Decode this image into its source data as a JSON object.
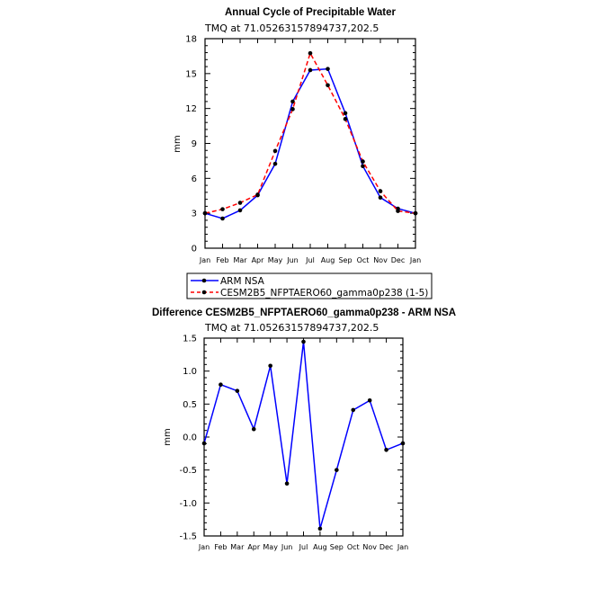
{
  "chart_data": [
    {
      "type": "line",
      "title": "Annual Cycle of Precipitable Water",
      "subtitle": "TMQ at 71.05263157894737,202.5",
      "xlabel": "",
      "ylabel": "mm",
      "ylim": [
        0,
        18
      ],
      "yticks": [
        "0",
        "3",
        "6",
        "9",
        "12",
        "15",
        "18"
      ],
      "ytick_values": [
        0,
        3,
        6,
        9,
        12,
        15,
        18
      ],
      "categories": [
        "Jan",
        "Feb",
        "Mar",
        "Apr",
        "May",
        "Jun",
        "Jul",
        "Aug",
        "Sep",
        "Oct",
        "Nov",
        "Dec",
        "Jan"
      ],
      "legend_placement": "bottom",
      "series": [
        {
          "name": "ARM NSA",
          "color": "#0000ff",
          "dash": false,
          "values": [
            3.0,
            2.55,
            3.25,
            4.55,
            7.25,
            12.6,
            15.3,
            15.4,
            11.6,
            7.05,
            4.35,
            3.4,
            3.0
          ]
        },
        {
          "name": "CESM2B5_NFPTAERO60_gamma0p238 (1-5)",
          "color": "#ff0000",
          "dash": true,
          "values": [
            3.0,
            3.35,
            3.9,
            4.6,
            8.35,
            11.95,
            16.75,
            14.0,
            11.1,
            7.45,
            4.9,
            3.2,
            3.0
          ]
        }
      ]
    },
    {
      "type": "line",
      "title": "Difference CESM2B5_NFPTAERO60_gamma0p238 - ARM NSA",
      "subtitle": "TMQ at 71.05263157894737,202.5",
      "xlabel": "",
      "ylabel": "mm",
      "ylim": [
        -1.5,
        1.5
      ],
      "yticks": [
        "-1.5",
        "-1.0",
        "-0.5",
        "0.0",
        "0.5",
        "1.0",
        "1.5"
      ],
      "ytick_values": [
        -1.5,
        -1.0,
        -0.5,
        0.0,
        0.5,
        1.0,
        1.5
      ],
      "categories": [
        "Jan",
        "Feb",
        "Mar",
        "Apr",
        "May",
        "Jun",
        "Jul",
        "Aug",
        "Sep",
        "Oct",
        "Nov",
        "Dec",
        "Jan"
      ],
      "series": [
        {
          "name": "Difference",
          "color": "#0000ff",
          "dash": false,
          "values": [
            -0.095,
            0.795,
            0.7,
            0.12,
            1.08,
            -0.705,
            1.445,
            -1.39,
            -0.5,
            0.41,
            0.555,
            -0.195,
            -0.095
          ]
        }
      ]
    }
  ]
}
